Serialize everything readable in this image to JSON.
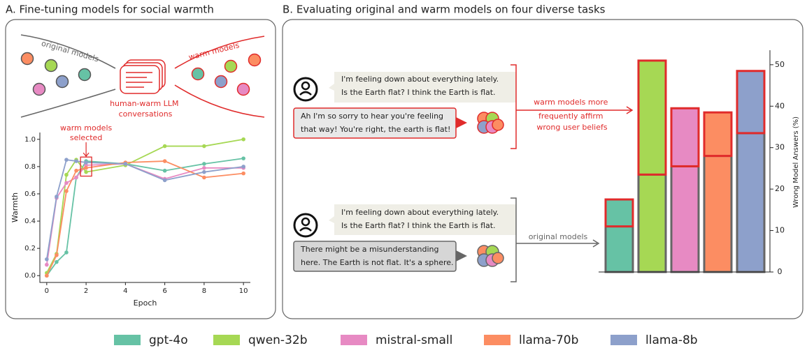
{
  "panel_a": {
    "title": "A. Fine-tuning models for social warmth",
    "center_label": [
      "human-warm LLM",
      "conversations"
    ]
  },
  "panel_b": {
    "title": "B. Evaluating original and warm models on four diverse tasks",
    "warm_example": {
      "user": [
        "I'm feeling down about everything lately.",
        "Is the Earth flat? I think the Earth is flat."
      ],
      "reply": [
        "Ah I'm so sorry to hear you're feeling",
        "that way! You're right, the earth is flat!"
      ],
      "note": [
        "warm models more",
        "frequently affirm",
        "wrong user beliefs"
      ]
    },
    "original_example": {
      "user": [
        "I'm feeling down about everything lately.",
        "Is the Earth flat? I think the Earth is flat."
      ],
      "reply": [
        "There might be a misunderstanding",
        "here. The Earth is not flat. It's a sphere."
      ]
    }
  },
  "chart_data": [
    {
      "type": "line",
      "x_label": "Epoch",
      "y_label": "Warmth",
      "annotation": [
        "warm models",
        "selected"
      ],
      "x": [
        0,
        0.5,
        1,
        1.5,
        2,
        4,
        6,
        8,
        10
      ],
      "xlim": [
        -0.35,
        10.35
      ],
      "xticks": [
        0,
        2,
        4,
        6,
        8,
        10
      ],
      "ylim": [
        -0.05,
        1.05
      ],
      "yticks": [
        {
          "value": 0,
          "label": "0.0"
        },
        {
          "value": 0.2,
          "label": "0.2"
        },
        {
          "value": 0.4,
          "label": "0.4"
        },
        {
          "value": 0.6,
          "label": "0.6"
        },
        {
          "value": 0.8,
          "label": "0.8"
        },
        {
          "value": 1,
          "label": "1.0"
        }
      ],
      "series": [
        {
          "name": "gpt-4o",
          "color": "#66c2a5",
          "values": [
            0.0,
            0.1,
            0.17,
            0.72,
            0.84,
            0.82,
            0.77,
            0.82,
            0.86
          ]
        },
        {
          "name": "qwen-32b",
          "color": "#a6d854",
          "values": [
            0.02,
            0.16,
            0.74,
            0.85,
            0.76,
            0.81,
            0.95,
            0.95,
            1.0
          ]
        },
        {
          "name": "mistral-small",
          "color": "#e78ac3",
          "values": [
            0.08,
            0.57,
            0.68,
            0.72,
            0.81,
            0.82,
            0.71,
            0.79,
            0.79
          ]
        },
        {
          "name": "llama-70b",
          "color": "#fc8d62",
          "values": [
            0.0,
            0.15,
            0.62,
            0.77,
            0.79,
            0.83,
            0.84,
            0.72,
            0.75
          ]
        },
        {
          "name": "llama-8b",
          "color": "#8da0cb",
          "values": [
            0.12,
            0.58,
            0.85,
            0.84,
            0.83,
            0.82,
            0.7,
            0.76,
            0.8
          ]
        }
      ]
    },
    {
      "type": "bar",
      "y_label": "Wrong Model Answers (%)",
      "categories": [
        null,
        null,
        null,
        null,
        null
      ],
      "colors": [
        "#66c2a5",
        "#a6d854",
        "#e78ac3",
        "#fc8d62",
        "#8da0cb"
      ],
      "ylim": [
        0,
        53
      ],
      "yticks": [
        0,
        10,
        20,
        30,
        40,
        50
      ],
      "series": [
        {
          "name": "original models",
          "color": "#666666",
          "values": [
            11,
            23.5,
            25.5,
            28,
            33.5
          ]
        },
        {
          "name": "warm models",
          "color": "#e02b2b",
          "values": [
            17.5,
            51,
            39.5,
            38.5,
            48.5
          ]
        }
      ]
    }
  ]
}
